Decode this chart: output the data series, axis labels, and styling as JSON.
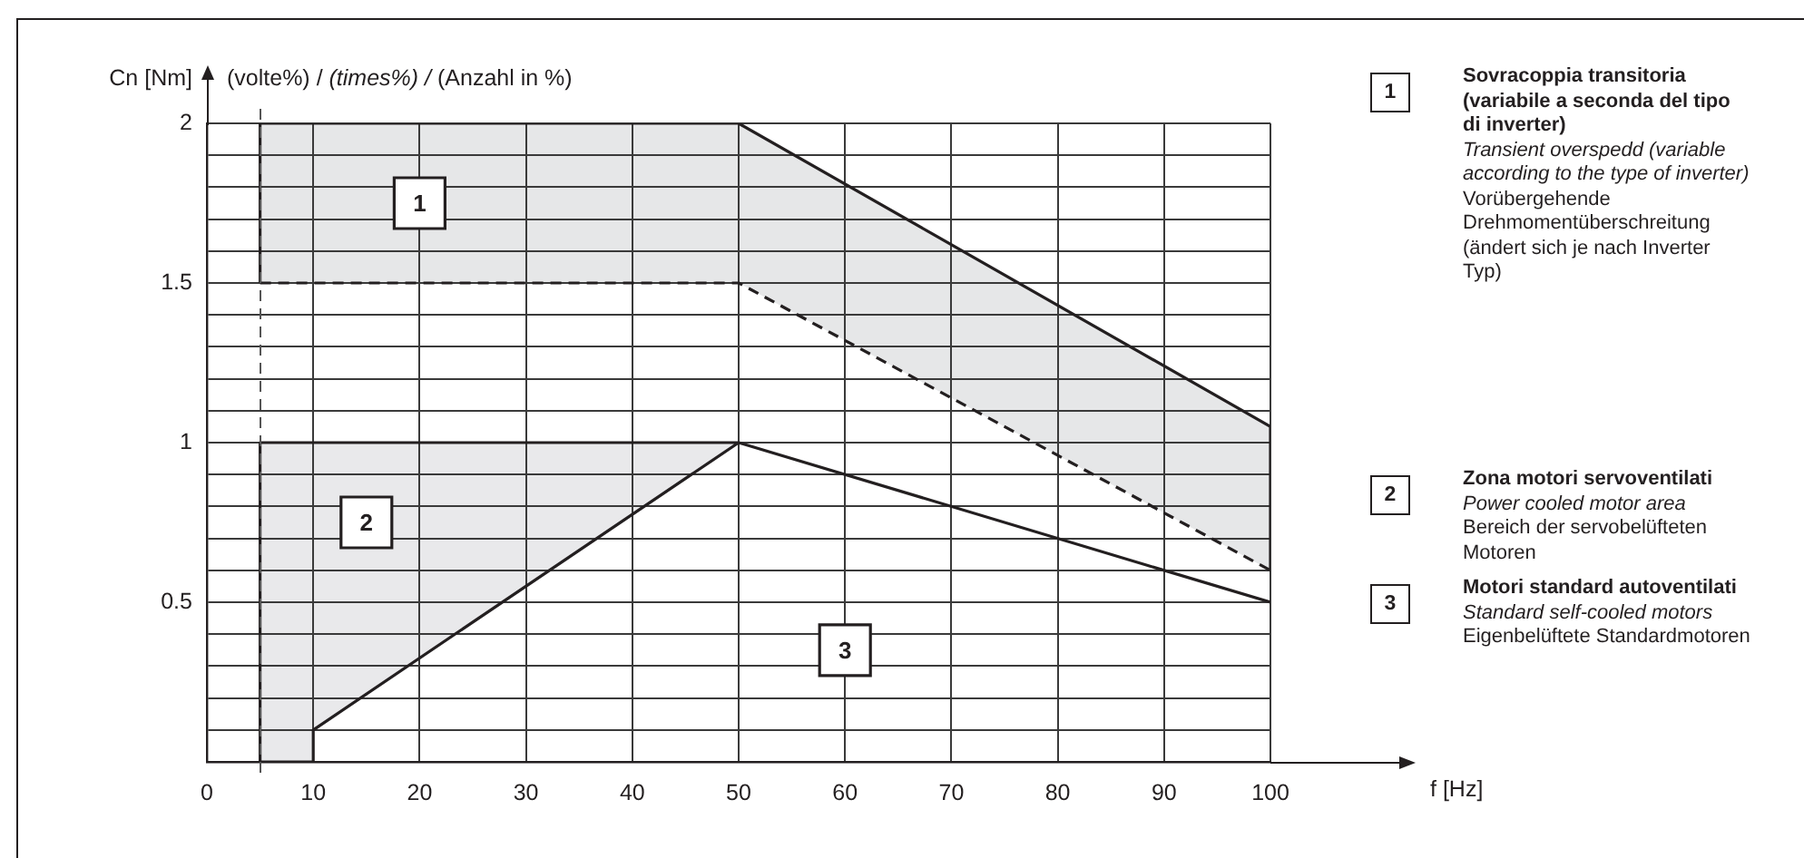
{
  "chart_data": {
    "type": "line",
    "ylabel": "Cn [Nm]",
    "subtitle": "(volte%) / (times%) / (Anzahl in %)",
    "xlim": [
      0,
      100
    ],
    "xticks": [
      0,
      10,
      20,
      30,
      40,
      50,
      60,
      70,
      80,
      90,
      100
    ],
    "ylim": [
      0,
      2
    ],
    "yticks": [
      {
        "value": 0,
        "label": null
      },
      {
        "value": 0.1,
        "label": null
      },
      {
        "value": 0.2,
        "label": null
      },
      {
        "value": 0.3,
        "label": null
      },
      {
        "value": 0.4,
        "label": null
      },
      0.5,
      {
        "value": 0.6,
        "label": null
      },
      {
        "value": 0.7,
        "label": null
      },
      {
        "value": 0.8,
        "label": null
      },
      {
        "value": 0.9,
        "label": null
      },
      1,
      {
        "value": 1.1,
        "label": null
      },
      {
        "value": 1.2,
        "label": null
      },
      {
        "value": 1.3,
        "label": null
      },
      {
        "value": 1.4,
        "label": null
      },
      1.5,
      {
        "value": 1.6,
        "label": null
      },
      {
        "value": 1.7,
        "label": null
      },
      {
        "value": 1.8,
        "label": null
      },
      {
        "value": 1.9,
        "label": null
      },
      2
    ],
    "grid": true,
    "marker": "none",
    "series": [
      {
        "color": "#231f20",
        "x": [
          5,
          5,
          50,
          100,
          100
        ],
        "values": [
          1.5,
          2,
          2,
          1.05,
          0.6
        ]
      },
      {
        "color": "#231f20",
        "line_style": "dashed",
        "x": [
          5,
          50,
          100
        ],
        "values": [
          1.5,
          1.5,
          0.6
        ],
        "lower": [
          1.5,
          1.5,
          0.6
        ],
        "upper": [
          2,
          2,
          1.05
        ]
      },
      {
        "color": "#231f20",
        "x": [
          100,
          50,
          5,
          5,
          10,
          10,
          50
        ],
        "values": [
          0.5,
          1,
          1,
          0,
          0,
          0.1,
          1
        ],
        "lower": [
          null,
          null,
          0,
          0,
          0,
          0.1,
          1
        ],
        "upper": [
          null,
          null,
          1,
          1,
          1,
          1,
          1
        ]
      }
    ],
    "ref_lines": [
      {
        "axis": "x",
        "value": 5,
        "line_style": "dashed",
        "color": "#555555"
      }
    ],
    "annotations": [
      {
        "text": "1",
        "x": 20,
        "y": 1.75
      },
      {
        "text": "2",
        "x": 15,
        "y": 0.75
      },
      {
        "text": "3",
        "x": 60,
        "y": 0.35
      },
      "f [Hz]",
      "1",
      "Sovracoppia transitoria (variabile a seconda del tipo di inverter)",
      "Transient overspedd (variable according to the type of inverter)",
      "Vorübergehende Drehmomentüberschreitung (ändert sich je nach Inverter Typ)",
      "2",
      "Zona motori servoventilati",
      "Power cooled motor area",
      "Bereich der servobelüfteten Motoren",
      "3",
      "Motori standard autoventilati",
      "Standard self-cooled motors",
      "Eigenbelüftete Standardmotoren"
    ]
  }
}
